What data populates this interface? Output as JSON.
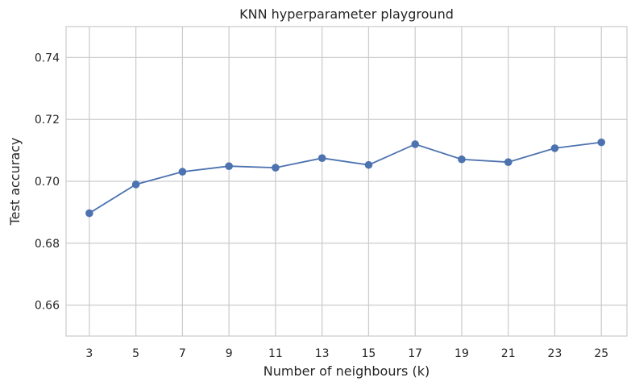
{
  "chart_data": {
    "type": "line",
    "title": "KNN hyperparameter playground",
    "xlabel": "Number of neighbours (k)",
    "ylabel": "Test accuracy",
    "x": [
      3,
      5,
      7,
      9,
      11,
      13,
      15,
      17,
      19,
      21,
      23,
      25
    ],
    "series": [
      {
        "values": [
          0.6897,
          0.699,
          0.7031,
          0.7049,
          0.7044,
          0.7075,
          0.7053,
          0.712,
          0.7071,
          0.7062,
          0.7107,
          0.7126
        ],
        "color": "#4c72b0",
        "marker": "circle"
      }
    ],
    "xticks": [
      "3",
      "5",
      "7",
      "9",
      "11",
      "13",
      "15",
      "17",
      "19",
      "21",
      "23",
      "25"
    ],
    "yticks": [
      "0.66",
      "0.68",
      "0.70",
      "0.72",
      "0.74"
    ],
    "ytick_values": [
      0.66,
      0.68,
      0.7,
      0.72,
      0.74
    ],
    "xlim": [
      2,
      26.1
    ],
    "ylim": [
      0.65,
      0.75
    ],
    "grid": true,
    "legend": "none"
  }
}
